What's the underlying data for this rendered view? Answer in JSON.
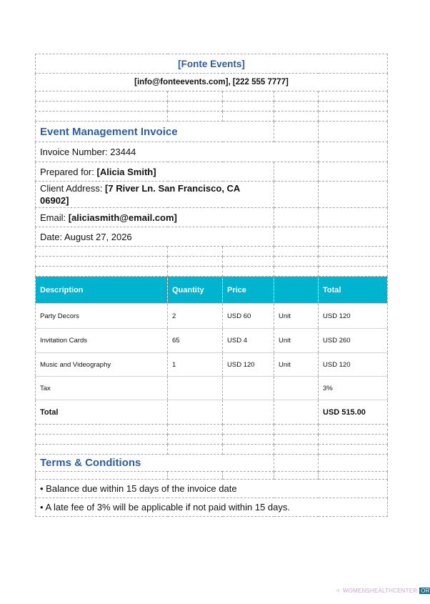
{
  "company": {
    "name": "[Fonte Events]",
    "contact": "[info@fonteevents.com], [222 555 7777]"
  },
  "invoice": {
    "title": "Event Management Invoice",
    "number": "Invoice Number: 23444",
    "prepared_label": "Prepared for: ",
    "prepared_value": "[Alicia Smith]",
    "address_label": "Client Address:  ",
    "address_value": "[7 River Ln. San Francisco, CA 06902]",
    "email_label": "Email: ",
    "email_value": "[aliciasmith@email.com]",
    "date": "Date: August 27, 2026"
  },
  "items_table": {
    "headers": [
      "Description",
      "Quantity",
      "Price",
      "",
      "Total"
    ],
    "rows": [
      [
        "Party Decors",
        "2",
        "USD 60",
        "Unit",
        "USD 120"
      ],
      [
        "Invitation Cards",
        "65",
        "USD 4",
        "Unit",
        "USD 260"
      ],
      [
        "Music and Videography",
        "1",
        "USD 120",
        "Unit",
        "USD 120"
      ],
      [
        "Tax",
        "",
        "",
        "",
        "3%"
      ]
    ],
    "total_label": "Total",
    "total_value": "USD 515.00"
  },
  "colors": {
    "header_bg": "#00b4d0",
    "accent": "#2e5e9c"
  },
  "terms": {
    "title": "Terms & Conditions",
    "items": [
      "• Balance due within 15 days of the invoice date",
      "• A late fee of 3% will be applicable if not paid within 15 days."
    ]
  },
  "watermark": {
    "text": "WOMENSHEALTHCENTER",
    "suffix": "ORG"
  }
}
